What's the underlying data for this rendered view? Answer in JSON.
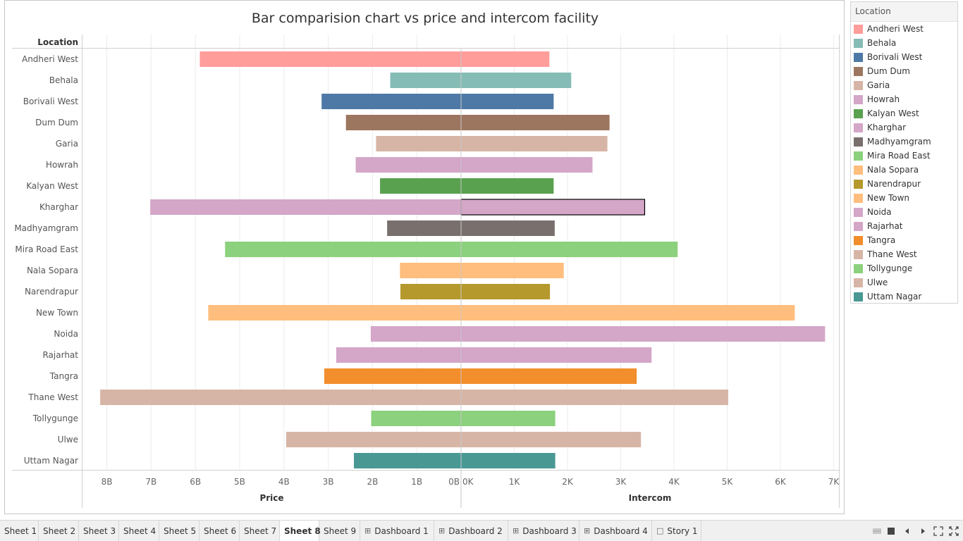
{
  "chart_data": {
    "type": "bar",
    "title": "Bar comparision chart vs price and intercom facility",
    "row_header": "Location",
    "categories": [
      "Andheri West",
      "Behala",
      "Borivali West",
      "Dum Dum",
      "Garia",
      "Howrah",
      "Kalyan West",
      "Kharghar",
      "Madhyamgram",
      "Mira Road East",
      "Nala Sopara",
      "Narendrapur",
      "New Town",
      "Noida",
      "Rajarhat",
      "Tangra",
      "Thane West",
      "Tollygunge",
      "Ulwe",
      "Uttam Nagar"
    ],
    "colors": [
      "#ff9d9a",
      "#86bcb6",
      "#4e79a7",
      "#9d7660",
      "#d7b5a6",
      "#d4a6c8",
      "#59a14f",
      "#d4a6c8",
      "#79706e",
      "#8cd17d",
      "#ffbe7d",
      "#b6992d",
      "#ffbe7d",
      "#d4a6c8",
      "#d4a6c8",
      "#f28e2b",
      "#d7b5a6",
      "#8cd17d",
      "#d7b5a6",
      "#499894"
    ],
    "series": [
      {
        "name": "Price",
        "values": [
          5.9,
          1.6,
          3.15,
          2.6,
          1.92,
          2.38,
          1.83,
          7.02,
          1.67,
          5.33,
          1.38,
          1.37,
          5.71,
          2.04,
          2.82,
          3.09,
          8.15,
          2.03,
          3.95,
          2.42
        ]
      },
      {
        "name": "Intercom",
        "values": [
          1660,
          2070,
          1740,
          2790,
          2750,
          2470,
          1740,
          3450,
          1760,
          4070,
          1930,
          1670,
          6270,
          6840,
          3580,
          3300,
          5020,
          1770,
          3380,
          1770
        ]
      }
    ],
    "price_axis": {
      "label": "Price",
      "ticks": [
        "8B",
        "7B",
        "6B",
        "5B",
        "4B",
        "3B",
        "2B",
        "1B",
        "0B"
      ],
      "values": [
        8,
        7,
        6,
        5,
        4,
        3,
        2,
        1,
        0
      ],
      "direction": "reversed",
      "xlim": [
        0,
        8.55
      ]
    },
    "intercom_axis": {
      "label": "Intercom",
      "ticks": [
        "0K",
        "1K",
        "2K",
        "3K",
        "4K",
        "5K",
        "6K",
        "7K"
      ],
      "values": [
        0,
        1000,
        2000,
        3000,
        4000,
        5000,
        6000,
        7000
      ],
      "xlim": [
        0,
        7100
      ]
    },
    "highlighted": "Kharghar",
    "grid": true,
    "legend_position": "right"
  },
  "legend": {
    "title": "Location",
    "items": [
      {
        "label": "Andheri West",
        "color": "#ff9d9a"
      },
      {
        "label": "Behala",
        "color": "#86bcb6"
      },
      {
        "label": "Borivali West",
        "color": "#4e79a7"
      },
      {
        "label": "Dum Dum",
        "color": "#9d7660"
      },
      {
        "label": "Garia",
        "color": "#d7b5a6"
      },
      {
        "label": "Howrah",
        "color": "#d4a6c8"
      },
      {
        "label": "Kalyan West",
        "color": "#59a14f"
      },
      {
        "label": "Kharghar",
        "color": "#d4a6c8"
      },
      {
        "label": "Madhyamgram",
        "color": "#79706e"
      },
      {
        "label": "Mira Road East",
        "color": "#8cd17d"
      },
      {
        "label": "Nala Sopara",
        "color": "#ffbe7d"
      },
      {
        "label": "Narendrapur",
        "color": "#b6992d"
      },
      {
        "label": "New Town",
        "color": "#ffbe7d"
      },
      {
        "label": "Noida",
        "color": "#d4a6c8"
      },
      {
        "label": "Rajarhat",
        "color": "#d4a6c8"
      },
      {
        "label": "Tangra",
        "color": "#f28e2b"
      },
      {
        "label": "Thane West",
        "color": "#d7b5a6"
      },
      {
        "label": "Tollygunge",
        "color": "#8cd17d"
      },
      {
        "label": "Ulwe",
        "color": "#d7b5a6"
      },
      {
        "label": "Uttam Nagar",
        "color": "#499894"
      }
    ]
  },
  "tabs": [
    {
      "label": "Sheet 1",
      "icon": ""
    },
    {
      "label": "Sheet 2",
      "icon": ""
    },
    {
      "label": "Sheet 3",
      "icon": ""
    },
    {
      "label": "Sheet 4",
      "icon": ""
    },
    {
      "label": "Sheet 5",
      "icon": ""
    },
    {
      "label": "Sheet 6",
      "icon": ""
    },
    {
      "label": "Sheet 7",
      "icon": ""
    },
    {
      "label": "Sheet 8",
      "icon": "",
      "active": true
    },
    {
      "label": "Sheet 9",
      "icon": ""
    },
    {
      "label": "Dashboard 1",
      "icon": "dashboard-icon"
    },
    {
      "label": "Dashboard 2",
      "icon": "dashboard-icon"
    },
    {
      "label": "Dashboard 3",
      "icon": "dashboard-icon"
    },
    {
      "label": "Dashboard 4",
      "icon": "dashboard-icon"
    },
    {
      "label": "Story 1",
      "icon": "story-icon"
    }
  ],
  "nav_icons": [
    "grid-view-icon",
    "filmstrip-view-icon",
    "previous-icon",
    "next-icon",
    "fit-screen-icon",
    "fullscreen-icon"
  ]
}
